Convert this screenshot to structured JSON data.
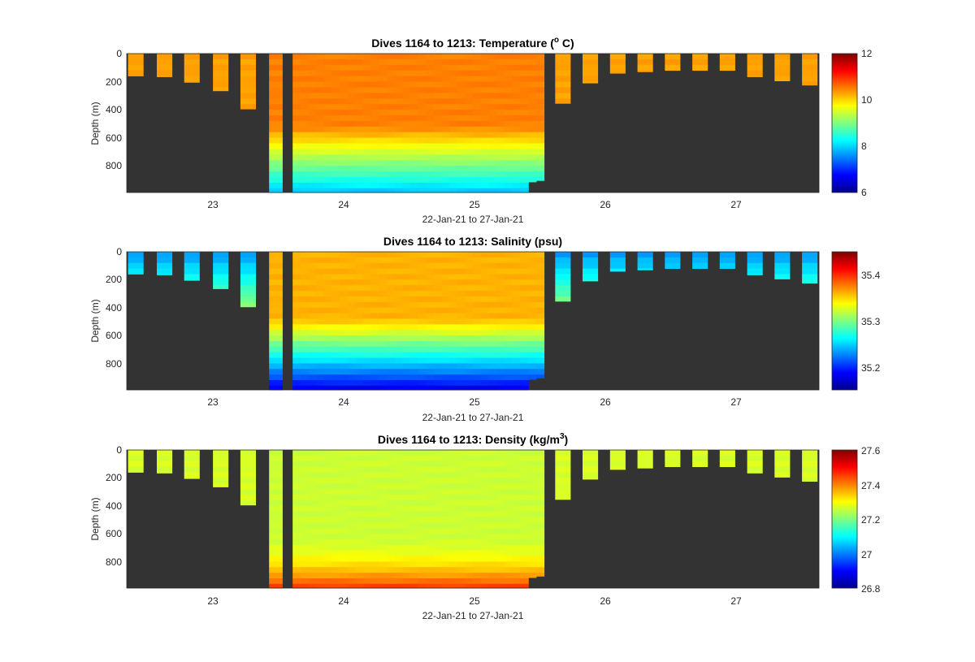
{
  "chart_data": [
    {
      "type": "heatmap",
      "title": "Dives 1164 to 1213: Temperature (",
      "title_sup": "o",
      "title_suffix": " C)",
      "ylabel": "Depth (m)",
      "xlabel": "22-Jan-21 to 27-Jan-21",
      "x_ticks": [
        "23",
        "24",
        "25",
        "26",
        "27"
      ],
      "y_ticks": [
        "0",
        "200",
        "400",
        "600",
        "800"
      ],
      "xlim": [
        22.35,
        27.65
      ],
      "ylim": [
        0,
        990
      ],
      "y_reversed": true,
      "colormap": "jet",
      "clim": [
        6,
        12
      ],
      "colorbar_ticks": [
        "6",
        "8",
        "10",
        "12"
      ],
      "background": "#333333",
      "data_summary": {
        "shallow_dives_value": 10.3,
        "deep_upper_value": 10.5,
        "deep_bottom_value": 7.9
      }
    },
    {
      "type": "heatmap",
      "title": "Dives 1164 to 1213: Salinity (psu)",
      "ylabel": "Depth (m)",
      "xlabel": "22-Jan-21 to 27-Jan-21",
      "x_ticks": [
        "23",
        "24",
        "25",
        "26",
        "27"
      ],
      "y_ticks": [
        "0",
        "200",
        "400",
        "600",
        "800"
      ],
      "xlim": [
        22.35,
        27.65
      ],
      "ylim": [
        0,
        990
      ],
      "y_reversed": true,
      "colormap": "jet",
      "clim": [
        35.15,
        35.45
      ],
      "colorbar_ticks": [
        "35.2",
        "35.3",
        "35.4"
      ],
      "background": "#333333",
      "data_summary": {
        "shallow_dives_value": 35.26,
        "deep_upper_value": 35.36,
        "deep_bottom_value": 35.18
      }
    },
    {
      "type": "heatmap",
      "title": "Dives 1164 to 1213: Density (kg/m",
      "title_sup": "3",
      "title_suffix": ")",
      "ylabel": "Depth (m)",
      "xlabel": "22-Jan-21 to 27-Jan-21",
      "x_ticks": [
        "23",
        "24",
        "25",
        "26",
        "27"
      ],
      "y_ticks": [
        "0",
        "200",
        "400",
        "600",
        "800"
      ],
      "xlim": [
        22.35,
        27.65
      ],
      "ylim": [
        0,
        990
      ],
      "y_reversed": true,
      "colormap": "jet",
      "clim": [
        26.8,
        27.6
      ],
      "colorbar_ticks": [
        "26.8",
        "27",
        "27.2",
        "27.4",
        "27.6"
      ],
      "background": "#333333",
      "data_summary": {
        "shallow_dives_value": 27.27,
        "deep_upper_value": 27.26,
        "deep_bottom_value": 27.46
      }
    }
  ],
  "profiles": [
    {
      "day": 22.36,
      "max_depth": 160
    },
    {
      "day": 22.58,
      "max_depth": 165
    },
    {
      "day": 22.79,
      "max_depth": 205
    },
    {
      "day": 23.01,
      "max_depth": 265
    },
    {
      "day": 23.22,
      "max_depth": 395
    },
    {
      "day": 23.44,
      "max_depth": 990
    },
    {
      "day": 23.62,
      "max_depth": 990
    },
    {
      "day": 23.68,
      "max_depth": 990
    },
    {
      "day": 23.74,
      "max_depth": 990
    },
    {
      "day": 23.8,
      "max_depth": 990
    },
    {
      "day": 23.86,
      "max_depth": 990
    },
    {
      "day": 23.92,
      "max_depth": 990
    },
    {
      "day": 23.98,
      "max_depth": 990
    },
    {
      "day": 24.04,
      "max_depth": 990
    },
    {
      "day": 24.1,
      "max_depth": 990
    },
    {
      "day": 24.16,
      "max_depth": 990
    },
    {
      "day": 24.22,
      "max_depth": 990
    },
    {
      "day": 24.28,
      "max_depth": 990
    },
    {
      "day": 24.34,
      "max_depth": 990
    },
    {
      "day": 24.4,
      "max_depth": 990
    },
    {
      "day": 24.46,
      "max_depth": 990
    },
    {
      "day": 24.52,
      "max_depth": 990
    },
    {
      "day": 24.58,
      "max_depth": 990
    },
    {
      "day": 24.64,
      "max_depth": 990
    },
    {
      "day": 24.7,
      "max_depth": 990
    },
    {
      "day": 24.76,
      "max_depth": 990
    },
    {
      "day": 24.82,
      "max_depth": 990
    },
    {
      "day": 24.88,
      "max_depth": 990
    },
    {
      "day": 24.94,
      "max_depth": 990
    },
    {
      "day": 25.0,
      "max_depth": 990
    },
    {
      "day": 25.06,
      "max_depth": 990
    },
    {
      "day": 25.12,
      "max_depth": 990
    },
    {
      "day": 25.18,
      "max_depth": 990
    },
    {
      "day": 25.24,
      "max_depth": 990
    },
    {
      "day": 25.3,
      "max_depth": 990
    },
    {
      "day": 25.36,
      "max_depth": 990
    },
    {
      "day": 25.42,
      "max_depth": 915
    },
    {
      "day": 25.48,
      "max_depth": 905
    },
    {
      "day": 25.63,
      "max_depth": 355
    },
    {
      "day": 25.84,
      "max_depth": 210
    },
    {
      "day": 26.05,
      "max_depth": 140
    },
    {
      "day": 26.26,
      "max_depth": 130
    },
    {
      "day": 26.47,
      "max_depth": 120
    },
    {
      "day": 26.68,
      "max_depth": 120
    },
    {
      "day": 26.89,
      "max_depth": 120
    },
    {
      "day": 27.1,
      "max_depth": 165
    },
    {
      "day": 27.31,
      "max_depth": 195
    },
    {
      "day": 27.52,
      "max_depth": 225
    }
  ]
}
